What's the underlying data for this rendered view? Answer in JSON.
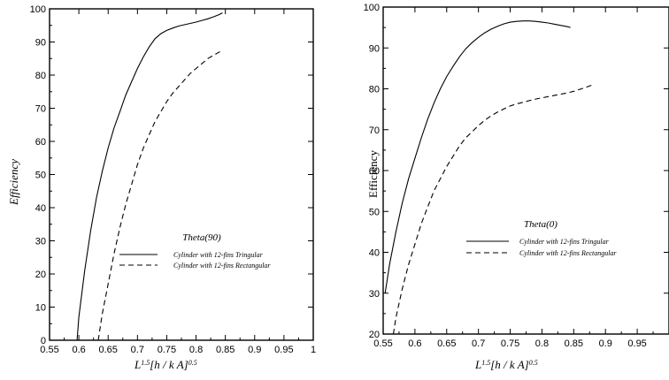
{
  "chart_data": [
    {
      "type": "line",
      "ylabel": "Efficiency",
      "annotation": "Theta(90)",
      "xlim": [
        0.55,
        1.0
      ],
      "ylim": [
        0,
        100
      ],
      "xticks": [
        "0.55",
        "0.6",
        "0.65",
        "0.7",
        "0.75",
        "0.8",
        "0.85",
        "0.9",
        "0.95",
        "1"
      ],
      "yticks": [
        "0",
        "10",
        "20",
        "30",
        "40",
        "50",
        "60",
        "70",
        "80",
        "90",
        "100"
      ],
      "xlabel": {
        "base": "L",
        "exp1": "1.5",
        "bracket": "[h / k A]",
        "exp2": "0.5"
      },
      "series": [
        {
          "name": "Cylinder with 12-fins Tringular",
          "style": "solid",
          "x": [
            0.597,
            0.6,
            0.61,
            0.62,
            0.63,
            0.64,
            0.65,
            0.66,
            0.67,
            0.68,
            0.69,
            0.7,
            0.71,
            0.72,
            0.73,
            0.74,
            0.75,
            0.76,
            0.77,
            0.78,
            0.79,
            0.8,
            0.81,
            0.82,
            0.83,
            0.84,
            0.845
          ],
          "y": [
            0,
            7,
            21,
            33,
            43,
            51,
            58,
            64,
            69,
            74,
            78,
            82,
            85.5,
            88.5,
            91,
            92.5,
            93.5,
            94.2,
            94.8,
            95.2,
            95.6,
            96,
            96.5,
            97,
            97.6,
            98.3,
            98.8
          ]
        },
        {
          "name": "Cylinder with 12-fins Rectangular",
          "style": "dashed",
          "x": [
            0.633,
            0.64,
            0.65,
            0.66,
            0.67,
            0.68,
            0.69,
            0.7,
            0.71,
            0.72,
            0.73,
            0.74,
            0.75,
            0.76,
            0.77,
            0.78,
            0.79,
            0.8,
            0.81,
            0.82,
            0.83,
            0.84,
            0.845
          ],
          "y": [
            0,
            8,
            17,
            26,
            34,
            41,
            47,
            53,
            58,
            62,
            66,
            69,
            72,
            74.5,
            76.5,
            78.5,
            80.5,
            82,
            83.5,
            85,
            86,
            87,
            87.5
          ]
        }
      ]
    },
    {
      "type": "line",
      "ylabel": "Efficiency",
      "annotation": "Theta(0)",
      "xlim": [
        0.55,
        1.0
      ],
      "ylim": [
        20,
        100
      ],
      "xticks": [
        "0.55",
        "0.6",
        "0.65",
        "0.7",
        "0.75",
        "0.8",
        "0.85",
        "0.9",
        "0.95"
      ],
      "yticks": [
        "20",
        "30",
        "40",
        "50",
        "60",
        "70",
        "80",
        "90",
        "100"
      ],
      "xlabel": {
        "base": "L",
        "exp1": "1.5",
        "bracket": "[h / k A]",
        "exp2": "0.5"
      },
      "series": [
        {
          "name": "Cylinder with 12-fins Tringular",
          "style": "solid",
          "x": [
            0.553,
            0.56,
            0.57,
            0.58,
            0.59,
            0.6,
            0.61,
            0.62,
            0.63,
            0.64,
            0.65,
            0.66,
            0.67,
            0.68,
            0.69,
            0.7,
            0.71,
            0.72,
            0.73,
            0.74,
            0.75,
            0.76,
            0.77,
            0.78,
            0.79,
            0.8,
            0.81,
            0.82,
            0.83,
            0.84,
            0.845
          ],
          "y": [
            30,
            37,
            45,
            52,
            58,
            63,
            68,
            72.5,
            76.5,
            80,
            83,
            85.5,
            87.8,
            89.8,
            91.3,
            92.6,
            93.7,
            94.6,
            95.3,
            95.9,
            96.3,
            96.5,
            96.6,
            96.6,
            96.5,
            96.3,
            96.1,
            95.8,
            95.5,
            95.2,
            95
          ]
        },
        {
          "name": "Cylinder with 12-fins Rectangular",
          "style": "dashed",
          "x": [
            0.566,
            0.57,
            0.58,
            0.59,
            0.6,
            0.61,
            0.62,
            0.63,
            0.64,
            0.65,
            0.66,
            0.67,
            0.68,
            0.69,
            0.7,
            0.71,
            0.72,
            0.73,
            0.74,
            0.75,
            0.76,
            0.77,
            0.78,
            0.79,
            0.8,
            0.81,
            0.82,
            0.83,
            0.84,
            0.85,
            0.86,
            0.87,
            0.88
          ],
          "y": [
            20,
            24,
            31,
            37,
            42,
            47,
            51,
            55,
            58,
            61,
            63.5,
            66,
            68,
            69.5,
            71,
            72.3,
            73.4,
            74.3,
            75.1,
            75.8,
            76.3,
            76.7,
            77.1,
            77.5,
            77.8,
            78.1,
            78.4,
            78.7,
            79,
            79.4,
            79.9,
            80.4,
            81
          ]
        }
      ]
    }
  ]
}
